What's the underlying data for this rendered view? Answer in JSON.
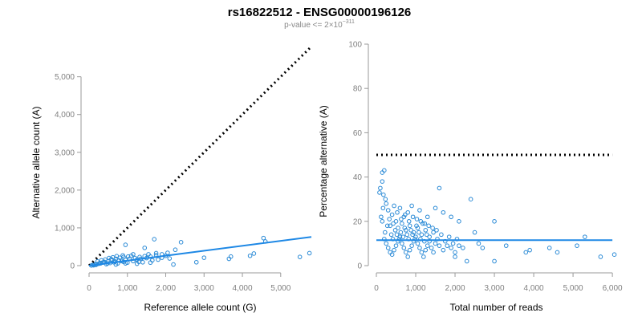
{
  "title": "rs16822512 - ENSG00000196126",
  "subtitle_prefix": "p-value <= 2×10",
  "subtitle_exponent": "−311",
  "colors": {
    "points": "#2a8ad6",
    "fit": "#1e88e5",
    "reference": "#000000",
    "axis": "#9a9a9a"
  },
  "chart_data": [
    {
      "type": "scatter",
      "name": "left",
      "xlabel": "Reference allele count (G)",
      "ylabel": "Alternative allele count (A)",
      "xlim": [
        0,
        5800
      ],
      "ylim": [
        0,
        5800
      ],
      "xticks": [
        0,
        1000,
        2000,
        3000,
        4000,
        5000
      ],
      "xtick_labels": [
        "0",
        "1,000",
        "2,000",
        "3,000",
        "4,000",
        "5,000"
      ],
      "yticks": [
        0,
        1000,
        2000,
        3000,
        4000,
        5000
      ],
      "ytick_labels": [
        "0",
        "1,000",
        "2,000",
        "3,000",
        "4,000",
        "5,000"
      ],
      "reference_line": {
        "label": "dotted y = x",
        "points": [
          [
            0,
            0
          ],
          [
            5800,
            5800
          ]
        ]
      },
      "fit_line": {
        "points": [
          [
            0,
            0
          ],
          [
            5800,
            760
          ]
        ]
      },
      "points": [
        [
          1700,
          700
        ],
        [
          2400,
          620
        ],
        [
          4550,
          730
        ],
        [
          4600,
          640
        ],
        [
          950,
          550
        ],
        [
          1450,
          470
        ],
        [
          2250,
          420
        ],
        [
          1750,
          330
        ],
        [
          5750,
          330
        ],
        [
          5500,
          230
        ],
        [
          4300,
          320
        ],
        [
          4200,
          260
        ],
        [
          3700,
          240
        ],
        [
          3650,
          180
        ],
        [
          3000,
          210
        ],
        [
          2800,
          90
        ],
        [
          2200,
          30
        ],
        [
          1500,
          200
        ],
        [
          1250,
          160
        ],
        [
          1100,
          260
        ],
        [
          900,
          230
        ],
        [
          800,
          210
        ],
        [
          700,
          180
        ],
        [
          600,
          150
        ],
        [
          500,
          120
        ],
        [
          400,
          100
        ],
        [
          350,
          80
        ],
        [
          300,
          60
        ],
        [
          250,
          50
        ],
        [
          200,
          40
        ],
        [
          150,
          30
        ],
        [
          100,
          20
        ],
        [
          1300,
          100
        ],
        [
          1000,
          80
        ],
        [
          850,
          120
        ],
        [
          750,
          60
        ],
        [
          650,
          90
        ],
        [
          550,
          70
        ],
        [
          450,
          40
        ],
        [
          950,
          150
        ],
        [
          1150,
          120
        ],
        [
          1350,
          180
        ],
        [
          1600,
          240
        ],
        [
          1900,
          210
        ],
        [
          1800,
          160
        ],
        [
          2000,
          260
        ],
        [
          2100,
          190
        ],
        [
          1650,
          140
        ],
        [
          1400,
          90
        ],
        [
          1200,
          200
        ],
        [
          1050,
          180
        ],
        [
          900,
          100
        ],
        [
          780,
          140
        ],
        [
          680,
          110
        ],
        [
          580,
          170
        ],
        [
          480,
          60
        ],
        [
          380,
          90
        ],
        [
          280,
          70
        ],
        [
          180,
          20
        ],
        [
          120,
          10
        ],
        [
          60,
          5
        ],
        [
          1550,
          300
        ],
        [
          1450,
          250
        ],
        [
          1320,
          230
        ],
        [
          1020,
          240
        ],
        [
          880,
          270
        ],
        [
          720,
          250
        ],
        [
          620,
          220
        ],
        [
          520,
          200
        ],
        [
          420,
          160
        ],
        [
          320,
          140
        ],
        [
          220,
          110
        ],
        [
          1900,
          300
        ],
        [
          2050,
          340
        ],
        [
          1750,
          280
        ],
        [
          1150,
          300
        ],
        [
          950,
          60
        ],
        [
          700,
          30
        ],
        [
          1250,
          50
        ],
        [
          1600,
          80
        ]
      ]
    },
    {
      "type": "scatter",
      "name": "right",
      "xlabel": "Total number of reads",
      "ylabel": "Percentage alternative (A)",
      "xlim": [
        0,
        6100
      ],
      "ylim": [
        0,
        100
      ],
      "xticks": [
        0,
        1000,
        2000,
        3000,
        4000,
        5000,
        6000
      ],
      "xtick_labels": [
        "0",
        "1,000",
        "2,000",
        "3,000",
        "4,000",
        "5,000",
        "6,000"
      ],
      "yticks": [
        0,
        20,
        40,
        60,
        80,
        100
      ],
      "ytick_labels": [
        "0",
        "20",
        "40",
        "60",
        "80",
        "100"
      ],
      "reference_line": {
        "label": "dotted 50%",
        "points": [
          [
            0,
            50
          ],
          [
            6000,
            50
          ]
        ]
      },
      "fit_line": {
        "points": [
          [
            0,
            11.5
          ],
          [
            6000,
            11.5
          ]
        ]
      },
      "points": [
        [
          150,
          42
        ],
        [
          200,
          43
        ],
        [
          150,
          38
        ],
        [
          100,
          35
        ],
        [
          80,
          33
        ],
        [
          180,
          32
        ],
        [
          250,
          28
        ],
        [
          450,
          27
        ],
        [
          600,
          26
        ],
        [
          1600,
          35
        ],
        [
          2400,
          30
        ],
        [
          3000,
          20
        ],
        [
          2100,
          20
        ],
        [
          1900,
          22
        ],
        [
          1700,
          24
        ],
        [
          1500,
          26
        ],
        [
          1300,
          22
        ],
        [
          1100,
          25
        ],
        [
          900,
          27
        ],
        [
          800,
          24
        ],
        [
          700,
          22
        ],
        [
          500,
          20
        ],
        [
          400,
          23
        ],
        [
          300,
          25
        ],
        [
          350,
          18
        ],
        [
          550,
          17
        ],
        [
          650,
          19
        ],
        [
          750,
          16
        ],
        [
          850,
          18
        ],
        [
          950,
          15
        ],
        [
          1050,
          17
        ],
        [
          1150,
          14
        ],
        [
          1250,
          16
        ],
        [
          1350,
          13
        ],
        [
          1450,
          15
        ],
        [
          1550,
          12
        ],
        [
          1650,
          14
        ],
        [
          1750,
          11
        ],
        [
          1850,
          13
        ],
        [
          1950,
          10
        ],
        [
          2050,
          12
        ],
        [
          2500,
          15
        ],
        [
          2600,
          10
        ],
        [
          2700,
          8
        ],
        [
          3300,
          9
        ],
        [
          3800,
          6
        ],
        [
          3900,
          7
        ],
        [
          4400,
          8
        ],
        [
          4600,
          6
        ],
        [
          5100,
          9
        ],
        [
          5300,
          13
        ],
        [
          5700,
          4
        ],
        [
          6050,
          5
        ],
        [
          3000,
          2
        ],
        [
          2300,
          2
        ],
        [
          2000,
          4
        ],
        [
          200,
          12
        ],
        [
          250,
          10
        ],
        [
          300,
          8
        ],
        [
          350,
          6
        ],
        [
          400,
          5
        ],
        [
          450,
          7
        ],
        [
          500,
          9
        ],
        [
          550,
          11
        ],
        [
          600,
          13
        ],
        [
          650,
          10
        ],
        [
          700,
          8
        ],
        [
          750,
          6
        ],
        [
          800,
          4
        ],
        [
          850,
          7
        ],
        [
          900,
          9
        ],
        [
          950,
          11
        ],
        [
          1000,
          13
        ],
        [
          1050,
          10
        ],
        [
          1100,
          8
        ],
        [
          1150,
          6
        ],
        [
          1200,
          4
        ],
        [
          1250,
          7
        ],
        [
          1300,
          9
        ],
        [
          1350,
          11
        ],
        [
          1400,
          8
        ],
        [
          1450,
          6
        ],
        [
          1500,
          10
        ],
        [
          1600,
          9
        ],
        [
          1700,
          7
        ],
        [
          1800,
          9
        ],
        [
          1900,
          8
        ],
        [
          2000,
          6
        ],
        [
          2100,
          9
        ],
        [
          2200,
          8
        ],
        [
          150,
          20
        ],
        [
          220,
          15
        ],
        [
          280,
          18
        ],
        [
          380,
          14
        ],
        [
          420,
          12
        ],
        [
          480,
          16
        ],
        [
          520,
          14
        ],
        [
          580,
          12
        ],
        [
          620,
          15
        ],
        [
          680,
          13
        ],
        [
          720,
          17
        ],
        [
          780,
          14
        ],
        [
          820,
          12
        ],
        [
          880,
          16
        ],
        [
          920,
          14
        ],
        [
          980,
          12
        ],
        [
          1020,
          18
        ],
        [
          1080,
          15
        ],
        [
          1120,
          12
        ],
        [
          1180,
          19
        ],
        [
          1220,
          11
        ],
        [
          1280,
          14
        ],
        [
          120,
          22
        ],
        [
          170,
          26
        ],
        [
          230,
          30
        ],
        [
          330,
          21
        ],
        [
          430,
          19
        ],
        [
          530,
          24
        ],
        [
          630,
          21
        ],
        [
          730,
          23
        ],
        [
          830,
          20
        ],
        [
          930,
          22
        ],
        [
          1030,
          21
        ],
        [
          1130,
          20
        ],
        [
          1230,
          19
        ],
        [
          1330,
          18
        ],
        [
          1430,
          17
        ],
        [
          1530,
          16
        ]
      ]
    }
  ]
}
